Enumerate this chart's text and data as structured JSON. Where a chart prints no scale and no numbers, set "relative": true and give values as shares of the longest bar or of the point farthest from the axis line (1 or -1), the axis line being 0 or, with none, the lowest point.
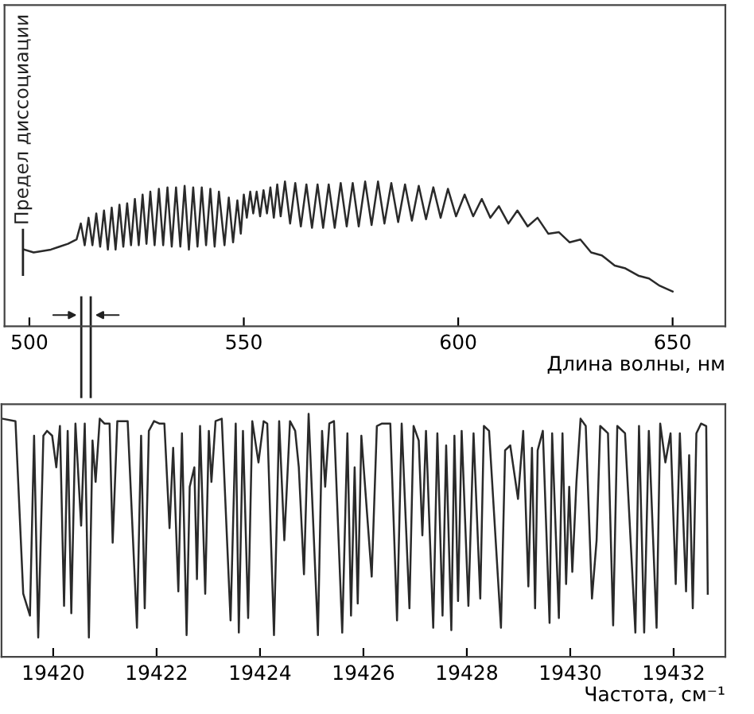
{
  "chart_data": [
    {
      "type": "line",
      "relative": true,
      "xlabel": "Длина волны, нм",
      "xlim": [
        494.2,
        662.3
      ],
      "xticks": [
        500,
        550,
        600,
        650
      ],
      "tick_labels": "x",
      "grid": false,
      "marker": "none",
      "line_style": "solid",
      "ref_lines": [
        {
          "axis": "x",
          "value": 498.5,
          "label": "Предел диссоциации",
          "color": "#222222"
        },
        {
          "axis": "x",
          "value": 512.1,
          "color": "#222222"
        },
        {
          "axis": "x",
          "value": 514.3,
          "color": "#222222"
        }
      ],
      "series": [
        {
          "color": "#2a2a2a",
          "x": [
            498.8,
            501,
            503,
            505,
            507,
            509,
            511,
            512.0,
            512.9,
            513.8,
            514.7,
            515.6,
            516.5,
            517.4,
            518.3,
            519.2,
            520.1,
            521.0,
            521.9,
            522.8,
            523.7,
            524.6,
            525.5,
            526.4,
            527.3,
            528.2,
            529.2,
            530.2,
            531.2,
            532.2,
            533.2,
            534.2,
            535.2,
            536.2,
            537.2,
            538.2,
            539.2,
            540.2,
            541.2,
            542.2,
            543.2,
            544.2,
            545.5,
            546.5,
            547.5,
            548.5,
            549.3,
            550.0,
            550.7,
            551.5,
            552.2,
            553.0,
            553.8,
            554.6,
            555.4,
            556.2,
            557.0,
            557.8,
            558.6,
            559.6,
            560.8,
            562.0,
            563.3,
            564.6,
            565.9,
            567.2,
            568.5,
            569.8,
            571.2,
            572.6,
            574.0,
            575.4,
            576.8,
            578.3,
            579.8,
            581.3,
            582.8,
            584.4,
            586.0,
            587.6,
            589.2,
            590.8,
            592.5,
            594.2,
            595.9,
            597.6,
            599.5,
            601.5,
            603.5,
            605.5,
            607.5,
            609.5,
            611.7,
            613.8,
            616.2,
            618.5,
            621,
            623.5,
            626,
            628.5,
            631,
            633.5,
            636.5,
            639,
            642,
            644.5,
            647,
            650
          ],
          "values": [
            0.53,
            0.51,
            0.52,
            0.53,
            0.55,
            0.57,
            0.6,
            0.71,
            0.56,
            0.75,
            0.56,
            0.78,
            0.55,
            0.8,
            0.53,
            0.82,
            0.53,
            0.84,
            0.55,
            0.85,
            0.56,
            0.88,
            0.56,
            0.91,
            0.57,
            0.93,
            0.56,
            0.95,
            0.56,
            0.96,
            0.55,
            0.96,
            0.55,
            0.97,
            0.53,
            0.96,
            0.55,
            0.96,
            0.56,
            0.95,
            0.55,
            0.93,
            0.56,
            0.89,
            0.58,
            0.87,
            0.64,
            0.91,
            0.75,
            0.93,
            0.78,
            0.93,
            0.76,
            0.94,
            0.78,
            0.96,
            0.75,
            0.98,
            0.76,
            1.0,
            0.71,
            0.99,
            0.69,
            0.98,
            0.68,
            0.98,
            0.68,
            0.98,
            0.68,
            0.99,
            0.69,
            0.99,
            0.69,
            1.0,
            0.7,
            1.0,
            0.71,
            0.99,
            0.72,
            0.98,
            0.73,
            0.97,
            0.74,
            0.96,
            0.75,
            0.95,
            0.76,
            0.91,
            0.76,
            0.88,
            0.75,
            0.83,
            0.71,
            0.8,
            0.69,
            0.75,
            0.64,
            0.65,
            0.58,
            0.6,
            0.51,
            0.49,
            0.42,
            0.4,
            0.35,
            0.33,
            0.28,
            0.24
          ]
        }
      ]
    },
    {
      "type": "line",
      "relative": true,
      "xlabel": "Частота, см⁻¹",
      "xlim": [
        19419.0,
        19433.0
      ],
      "xticks": [
        19420,
        19422,
        19424,
        19426,
        19428,
        19430,
        19432
      ],
      "tick_labels": "x",
      "grid": false,
      "marker": "none",
      "line_style": "solid",
      "series": [
        {
          "color": "#2a2a2a",
          "x": [
            19419.02,
            19419.27,
            19419.42,
            19419.55,
            19419.63,
            19419.71,
            19419.81,
            19419.88,
            19419.98,
            19420.06,
            19420.13,
            19420.21,
            19420.28,
            19420.35,
            19420.43,
            19420.54,
            19420.61,
            19420.69,
            19420.76,
            19420.82,
            19420.9,
            19420.99,
            19421.09,
            19421.15,
            19421.24,
            19421.44,
            19421.62,
            19421.7,
            19421.77,
            19421.85,
            19421.95,
            19422.05,
            19422.15,
            19422.25,
            19422.32,
            19422.42,
            19422.49,
            19422.58,
            19422.64,
            19422.73,
            19422.78,
            19422.84,
            19422.94,
            19423.01,
            19423.06,
            19423.14,
            19423.26,
            19423.43,
            19423.53,
            19423.59,
            19423.67,
            19423.77,
            19423.85,
            19423.97,
            19424.07,
            19424.14,
            19424.27,
            19424.37,
            19424.47,
            19424.58,
            19424.68,
            19424.75,
            19424.85,
            19424.94,
            19425.12,
            19425.2,
            19425.26,
            19425.34,
            19425.43,
            19425.59,
            19425.69,
            19425.76,
            19425.83,
            19425.89,
            19425.96,
            19426.16,
            19426.26,
            19426.36,
            19426.52,
            19426.65,
            19426.74,
            19426.89,
            19426.97,
            19427.07,
            19427.14,
            19427.21,
            19427.35,
            19427.43,
            19427.53,
            19427.6,
            19427.7,
            19427.76,
            19427.83,
            19427.9,
            19428.03,
            19428.13,
            19428.26,
            19428.33,
            19428.43,
            19428.66,
            19428.74,
            19428.84,
            19428.99,
            19429.09,
            19429.19,
            19429.26,
            19429.32,
            19429.37,
            19429.47,
            19429.6,
            19429.65,
            19429.78,
            19429.85,
            19429.92,
            19429.98,
            19430.04,
            19430.12,
            19430.2,
            19430.3,
            19430.42,
            19430.51,
            19430.58,
            19430.73,
            19430.83,
            19430.91,
            19431.06,
            19431.26,
            19431.33,
            19431.43,
            19431.52,
            19431.67,
            19431.74,
            19431.84,
            19431.94,
            19432.04,
            19432.12,
            19432.24,
            19432.3,
            19432.37,
            19432.44,
            19432.53,
            19432.63,
            19432.66
          ],
          "values": [
            0.98,
            0.97,
            0.26,
            0.17,
            0.91,
            0.08,
            0.91,
            0.93,
            0.91,
            0.78,
            0.95,
            0.21,
            0.93,
            0.18,
            0.96,
            0.54,
            0.96,
            0.08,
            0.89,
            0.72,
            0.98,
            0.96,
            0.96,
            0.47,
            0.97,
            0.97,
            0.12,
            0.91,
            0.2,
            0.93,
            0.97,
            0.96,
            0.96,
            0.53,
            0.86,
            0.27,
            0.92,
            0.09,
            0.7,
            0.78,
            0.32,
            0.95,
            0.26,
            0.93,
            0.72,
            0.97,
            0.98,
            0.15,
            0.96,
            0.1,
            0.93,
            0.16,
            0.97,
            0.8,
            0.97,
            0.96,
            0.09,
            0.97,
            0.48,
            0.97,
            0.93,
            0.78,
            0.34,
            1.0,
            0.09,
            0.93,
            0.7,
            0.96,
            0.97,
            0.1,
            0.92,
            0.17,
            0.78,
            0.22,
            0.91,
            0.33,
            0.95,
            0.96,
            0.96,
            0.15,
            0.96,
            0.2,
            0.95,
            0.89,
            0.5,
            0.93,
            0.12,
            0.92,
            0.17,
            0.87,
            0.11,
            0.91,
            0.23,
            0.93,
            0.21,
            0.92,
            0.24,
            0.95,
            0.93,
            0.12,
            0.85,
            0.87,
            0.65,
            0.93,
            0.29,
            0.86,
            0.2,
            0.85,
            0.93,
            0.14,
            0.92,
            0.16,
            0.92,
            0.3,
            0.7,
            0.35,
            0.72,
            0.98,
            0.95,
            0.24,
            0.48,
            0.95,
            0.92,
            0.13,
            0.95,
            0.92,
            0.1,
            0.95,
            0.1,
            0.93,
            0.12,
            0.96,
            0.8,
            0.92,
            0.3,
            0.92,
            0.27,
            0.83,
            0.2,
            0.92,
            0.96,
            0.95,
            0.26
          ]
        }
      ]
    }
  ]
}
